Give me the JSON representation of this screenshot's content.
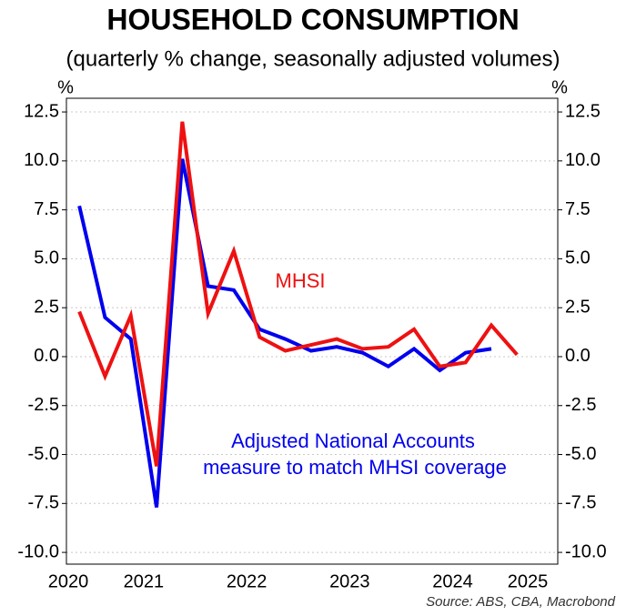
{
  "chart_data": {
    "type": "line",
    "title": "HOUSEHOLD CONSUMPTION",
    "subtitle": "(quarterly % change, seasonally adjusted volumes)",
    "y_unit_left": "%",
    "y_unit_right": "%",
    "source": "Source: ABS, CBA, Macrobond",
    "annotations": [
      {
        "text": "MHSI",
        "color": "#ee1111"
      },
      {
        "text": "Adjusted National Accounts",
        "color": "#0000ee"
      },
      {
        "text": "measure to match MHSI coverage",
        "color": "#0000ee"
      }
    ],
    "x": [
      2020.875,
      2021.125,
      2021.375,
      2021.625,
      2021.875,
      2022.125,
      2022.375,
      2022.625,
      2022.875,
      2023.125,
      2023.375,
      2023.625,
      2023.875,
      2024.125,
      2024.375,
      2024.625,
      2024.875,
      2025.125
    ],
    "xlim": [
      2020.75,
      2025.52
    ],
    "xticks": [
      {
        "value": 2020.5,
        "label": "2020"
      },
      {
        "value": 2021.5,
        "label": "2021"
      },
      {
        "value": 2022.5,
        "label": "2022"
      },
      {
        "value": 2023.5,
        "label": "2023"
      },
      {
        "value": 2024.5,
        "label": "2024"
      },
      {
        "value": 2025.5,
        "label": "2025"
      }
    ],
    "series": [
      {
        "name": "Adjusted National Accounts measure to match MHSI coverage",
        "color": "#0000ee",
        "values": [
          7.7,
          2.0,
          0.9,
          -7.7,
          10.1,
          3.6,
          3.4,
          1.4,
          0.9,
          0.3,
          0.5,
          0.2,
          -0.5,
          0.4,
          -0.7,
          0.2,
          0.4,
          null
        ]
      },
      {
        "name": "MHSI",
        "color": "#ee1111",
        "values": [
          2.3,
          -1.0,
          2.1,
          -5.6,
          12.0,
          2.2,
          5.4,
          1.0,
          0.3,
          0.6,
          0.9,
          0.4,
          0.5,
          1.4,
          -0.5,
          -0.3,
          1.6,
          0.1
        ]
      }
    ],
    "ylim": [
      -10.6,
      13.2
    ],
    "yticks": [
      {
        "value": 12.5,
        "label": "12.5"
      },
      {
        "value": 10,
        "label": "10.0"
      },
      {
        "value": 7.5,
        "label": "7.5"
      },
      {
        "value": 5,
        "label": "5.0"
      },
      {
        "value": 2.5,
        "label": "2.5"
      },
      {
        "value": 0,
        "label": "0.0"
      },
      {
        "value": -2.5,
        "label": "-2.5"
      },
      {
        "value": -5,
        "label": "-5.0"
      },
      {
        "value": -7.5,
        "label": "-7.5"
      },
      {
        "value": -10,
        "label": "-10.0"
      }
    ],
    "y2lim": [
      -10.6,
      13.2
    ],
    "y2ticks": [
      {
        "value": 12.5,
        "label": "12.5"
      },
      {
        "value": 10,
        "label": "10.0"
      },
      {
        "value": 7.5,
        "label": "7.5"
      },
      {
        "value": 5,
        "label": "5.0"
      },
      {
        "value": 2.5,
        "label": "2.5"
      },
      {
        "value": 0,
        "label": "0.0"
      },
      {
        "value": -2.5,
        "label": "-2.5"
      },
      {
        "value": -5,
        "label": "-5.0"
      },
      {
        "value": -7.5,
        "label": "-7.5"
      },
      {
        "value": -10,
        "label": "-10.0"
      }
    ],
    "grid": true
  }
}
